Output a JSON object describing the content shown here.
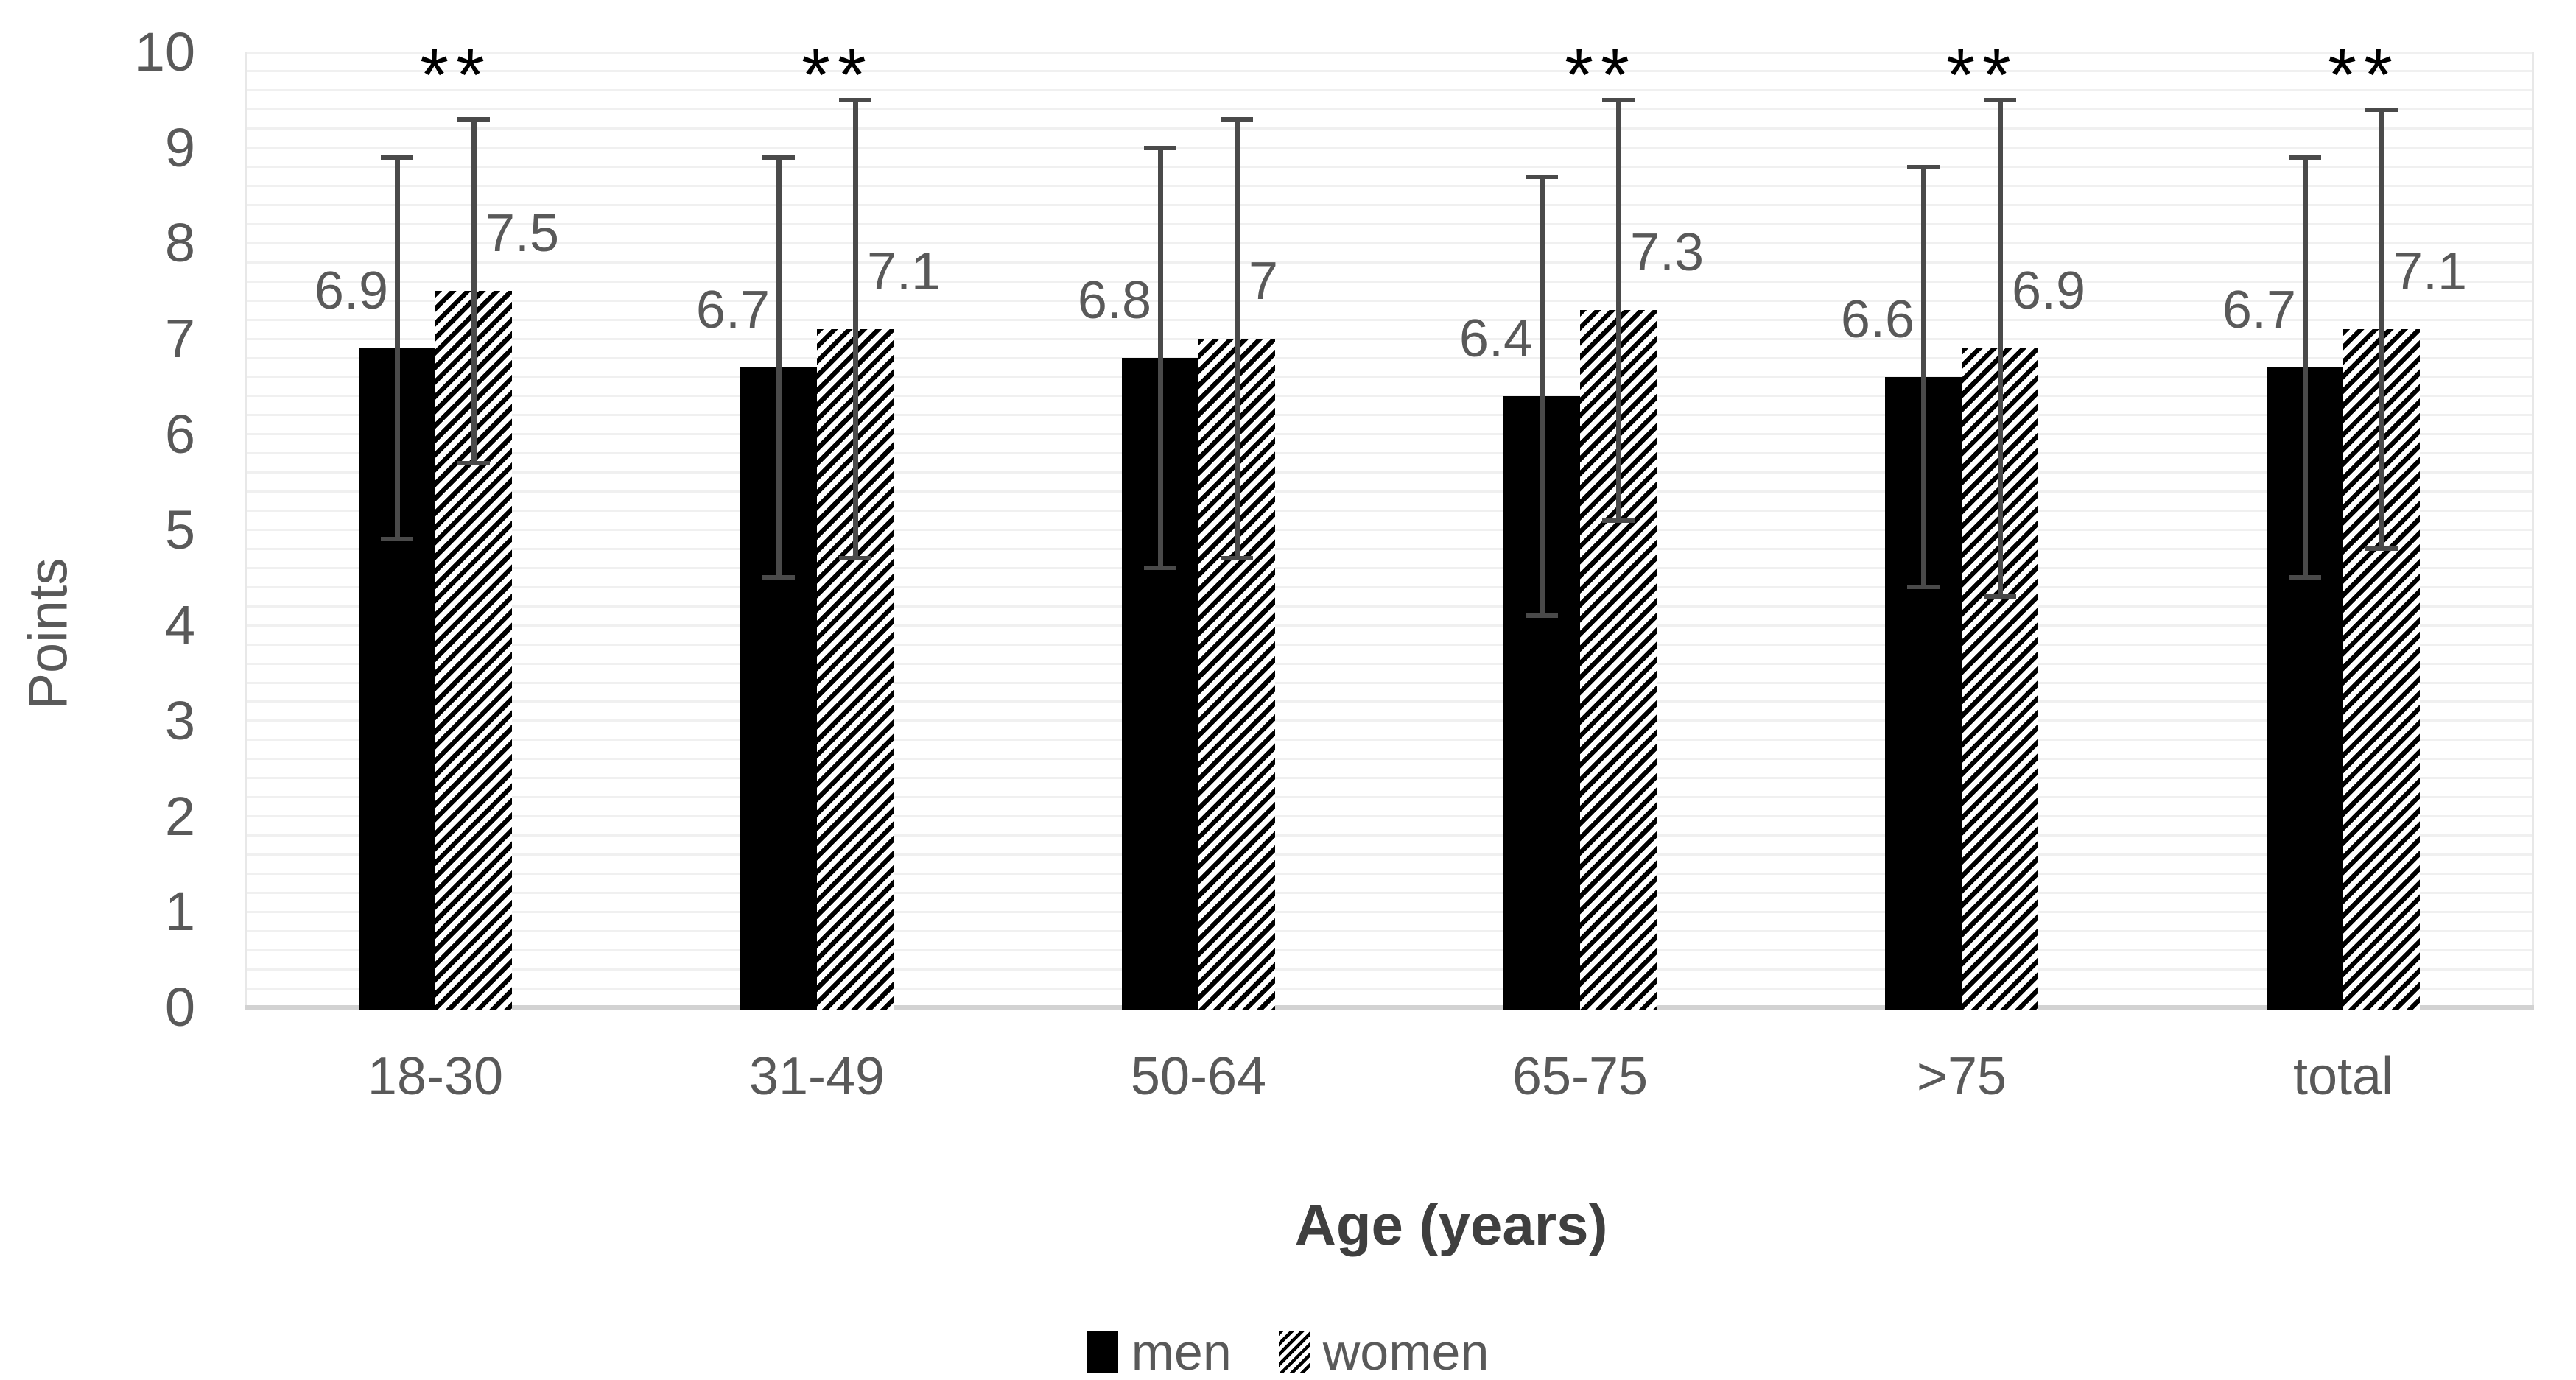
{
  "chart_data": {
    "type": "bar",
    "subtype": "grouped-vertical-with-error-bars",
    "title": "",
    "xlabel": "Age (years)",
    "ylabel": "Points",
    "categories": [
      "18-30",
      "31-49",
      "50-64",
      "65-75",
      ">75",
      "total"
    ],
    "series": [
      {
        "name": "men",
        "fill": "solid-black",
        "values": [
          6.9,
          6.7,
          6.8,
          6.4,
          6.6,
          6.7
        ],
        "error_low": [
          4.9,
          4.5,
          4.6,
          4.1,
          4.4,
          4.5
        ],
        "error_high": [
          8.9,
          8.9,
          9.0,
          8.7,
          8.8,
          8.9
        ],
        "data_labels": [
          "6.9",
          "6.7",
          "6.8",
          "6.4",
          "6.6",
          "6.7"
        ]
      },
      {
        "name": "women",
        "fill": "black-diagonal-hatch",
        "values": [
          7.5,
          7.1,
          7.0,
          7.3,
          6.9,
          7.1
        ],
        "error_low": [
          5.7,
          4.7,
          4.7,
          5.1,
          4.3,
          4.8
        ],
        "error_high": [
          9.3,
          9.5,
          9.3,
          9.5,
          9.5,
          9.4
        ],
        "data_labels": [
          "7.5",
          "7.1",
          "7",
          "7.3",
          "6.9",
          "7.1"
        ]
      }
    ],
    "significance": {
      "marker": "**",
      "flags": [
        true,
        true,
        false,
        true,
        true,
        true
      ],
      "categories_marked": [
        "18-30",
        "31-49",
        "65-75",
        ">75",
        "total"
      ]
    },
    "yticks": [
      "0",
      "1",
      "2",
      "3",
      "4",
      "5",
      "6",
      "7",
      "8",
      "9",
      "10"
    ],
    "ylim": [
      0,
      10
    ],
    "grid": {
      "visible": true,
      "minor_step": 0.2,
      "orientation": "horizontal"
    },
    "legend": {
      "position": "bottom",
      "entries": [
        "men",
        "women"
      ]
    },
    "colors": {
      "bar_men": "#000000",
      "bar_women_pattern": "#000000",
      "background": "#ffffff",
      "text": "#595959",
      "axis_title_text": "#3f3f3f",
      "error_bar": "#4a4a4a",
      "gridline": "#f0f0f0",
      "axis_line": "#d2d2d2",
      "significance_marker": "#000000"
    }
  }
}
